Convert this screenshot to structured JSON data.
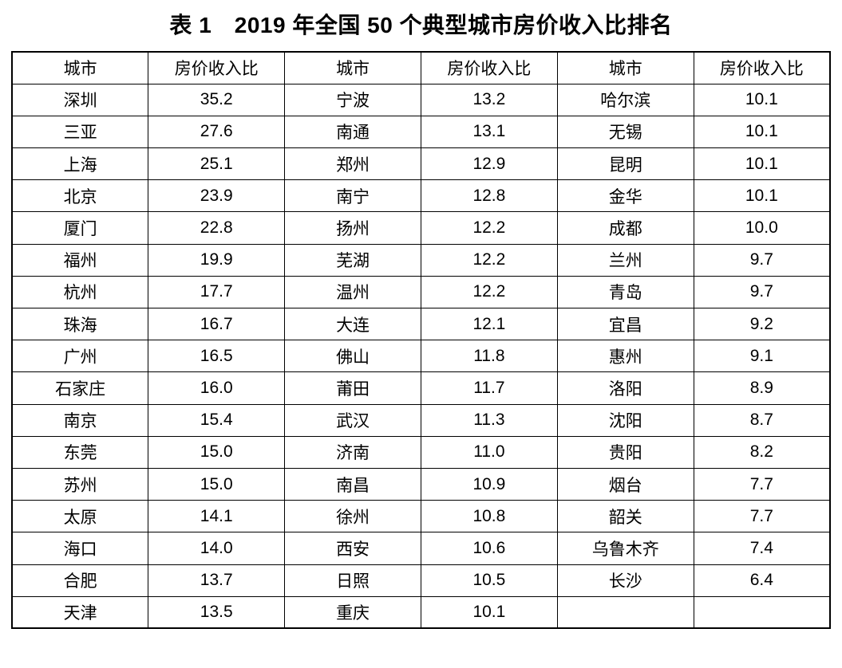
{
  "title": "表 1　2019 年全国 50 个典型城市房价收入比排名",
  "table": {
    "header": [
      "城市",
      "房价收入比",
      "城市",
      "房价收入比",
      "城市",
      "房价收入比"
    ],
    "rows": [
      [
        "深圳",
        "35.2",
        "宁波",
        "13.2",
        "哈尔滨",
        "10.1"
      ],
      [
        "三亚",
        "27.6",
        "南通",
        "13.1",
        "无锡",
        "10.1"
      ],
      [
        "上海",
        "25.1",
        "郑州",
        "12.9",
        "昆明",
        "10.1"
      ],
      [
        "北京",
        "23.9",
        "南宁",
        "12.8",
        "金华",
        "10.1"
      ],
      [
        "厦门",
        "22.8",
        "扬州",
        "12.2",
        "成都",
        "10.0"
      ],
      [
        "福州",
        "19.9",
        "芜湖",
        "12.2",
        "兰州",
        "9.7"
      ],
      [
        "杭州",
        "17.7",
        "温州",
        "12.2",
        "青岛",
        "9.7"
      ],
      [
        "珠海",
        "16.7",
        "大连",
        "12.1",
        "宜昌",
        "9.2"
      ],
      [
        "广州",
        "16.5",
        "佛山",
        "11.8",
        "惠州",
        "9.1"
      ],
      [
        "石家庄",
        "16.0",
        "莆田",
        "11.7",
        "洛阳",
        "8.9"
      ],
      [
        "南京",
        "15.4",
        "武汉",
        "11.3",
        "沈阳",
        "8.7"
      ],
      [
        "东莞",
        "15.0",
        "济南",
        "11.0",
        "贵阳",
        "8.2"
      ],
      [
        "苏州",
        "15.0",
        "南昌",
        "10.9",
        "烟台",
        "7.7"
      ],
      [
        "太原",
        "14.1",
        "徐州",
        "10.8",
        "韶关",
        "7.7"
      ],
      [
        "海口",
        "14.0",
        "西安",
        "10.6",
        "乌鲁木齐",
        "7.4"
      ],
      [
        "合肥",
        "13.7",
        "日照",
        "10.5",
        "长沙",
        "6.4"
      ],
      [
        "天津",
        "13.5",
        "重庆",
        "10.1",
        "",
        ""
      ]
    ]
  },
  "colors": {
    "text": "#000000",
    "border": "#000000",
    "background": "#ffffff"
  },
  "chart_data": {
    "type": "table",
    "title": "表 1　2019 年全国 50 个典型城市房价收入比排名",
    "columns": [
      "城市",
      "房价收入比"
    ],
    "records": [
      {
        "城市": "深圳",
        "房价收入比": 35.2
      },
      {
        "城市": "三亚",
        "房价收入比": 27.6
      },
      {
        "城市": "上海",
        "房价收入比": 25.1
      },
      {
        "城市": "北京",
        "房价收入比": 23.9
      },
      {
        "城市": "厦门",
        "房价收入比": 22.8
      },
      {
        "城市": "福州",
        "房价收入比": 19.9
      },
      {
        "城市": "杭州",
        "房价收入比": 17.7
      },
      {
        "城市": "珠海",
        "房价收入比": 16.7
      },
      {
        "城市": "广州",
        "房价收入比": 16.5
      },
      {
        "城市": "石家庄",
        "房价收入比": 16.0
      },
      {
        "城市": "南京",
        "房价收入比": 15.4
      },
      {
        "城市": "东莞",
        "房价收入比": 15.0
      },
      {
        "城市": "苏州",
        "房价收入比": 15.0
      },
      {
        "城市": "太原",
        "房价收入比": 14.1
      },
      {
        "城市": "海口",
        "房价收入比": 14.0
      },
      {
        "城市": "合肥",
        "房价收入比": 13.7
      },
      {
        "城市": "天津",
        "房价收入比": 13.5
      },
      {
        "城市": "宁波",
        "房价收入比": 13.2
      },
      {
        "城市": "南通",
        "房价收入比": 13.1
      },
      {
        "城市": "郑州",
        "房价收入比": 12.9
      },
      {
        "城市": "南宁",
        "房价收入比": 12.8
      },
      {
        "城市": "扬州",
        "房价收入比": 12.2
      },
      {
        "城市": "芜湖",
        "房价收入比": 12.2
      },
      {
        "城市": "温州",
        "房价收入比": 12.2
      },
      {
        "城市": "大连",
        "房价收入比": 12.1
      },
      {
        "城市": "佛山",
        "房价收入比": 11.8
      },
      {
        "城市": "莆田",
        "房价收入比": 11.7
      },
      {
        "城市": "武汉",
        "房价收入比": 11.3
      },
      {
        "城市": "济南",
        "房价收入比": 11.0
      },
      {
        "城市": "南昌",
        "房价收入比": 10.9
      },
      {
        "城市": "徐州",
        "房价收入比": 10.8
      },
      {
        "城市": "西安",
        "房价收入比": 10.6
      },
      {
        "城市": "日照",
        "房价收入比": 10.5
      },
      {
        "城市": "重庆",
        "房价收入比": 10.1
      },
      {
        "城市": "哈尔滨",
        "房价收入比": 10.1
      },
      {
        "城市": "无锡",
        "房价收入比": 10.1
      },
      {
        "城市": "昆明",
        "房价收入比": 10.1
      },
      {
        "城市": "金华",
        "房价收入比": 10.1
      },
      {
        "城市": "成都",
        "房价收入比": 10.0
      },
      {
        "城市": "兰州",
        "房价收入比": 9.7
      },
      {
        "城市": "青岛",
        "房价收入比": 9.7
      },
      {
        "城市": "宜昌",
        "房价收入比": 9.2
      },
      {
        "城市": "惠州",
        "房价收入比": 9.1
      },
      {
        "城市": "洛阳",
        "房价收入比": 8.9
      },
      {
        "城市": "沈阳",
        "房价收入比": 8.7
      },
      {
        "城市": "贵阳",
        "房价收入比": 8.2
      },
      {
        "城市": "烟台",
        "房价收入比": 7.7
      },
      {
        "城市": "韶关",
        "房价收入比": 7.7
      },
      {
        "城市": "乌鲁木齐",
        "房价收入比": 7.4
      },
      {
        "城市": "长沙",
        "房价收入比": 6.4
      }
    ]
  }
}
